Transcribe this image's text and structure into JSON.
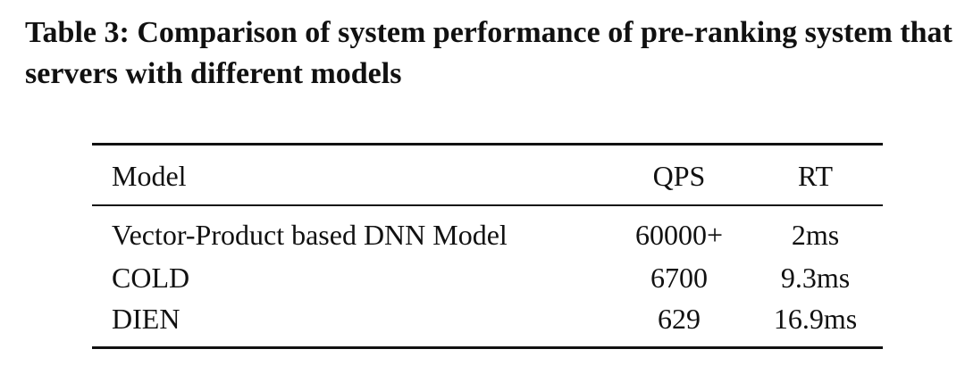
{
  "caption": {
    "title": "Table 3: Comparison of system performance of pre-ranking system that servers with different models"
  },
  "table": {
    "header": [
      "Model",
      "QPS",
      "RT"
    ],
    "rows": [
      [
        "Vector-Product based DNN Model",
        "60000+",
        "2ms"
      ],
      [
        "COLD",
        "6700",
        "9.3ms"
      ],
      [
        "DIEN",
        "629",
        "16.9ms"
      ]
    ]
  }
}
